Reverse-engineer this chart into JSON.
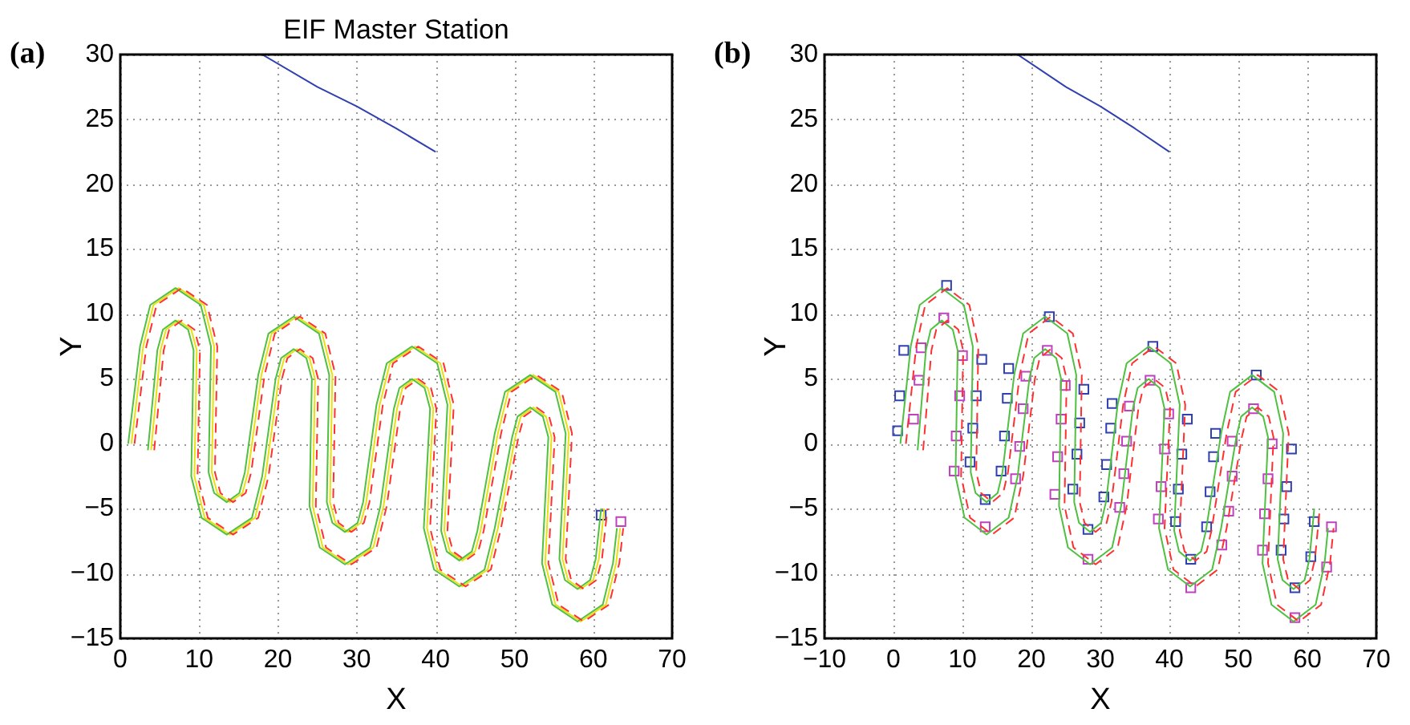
{
  "chart_data": [
    {
      "type": "line",
      "title": "EIF Master Station",
      "annotations": [
        "(a)"
      ],
      "xlabel": "X",
      "ylabel": "Y",
      "xlim": [
        0,
        70
      ],
      "xticks": [
        0,
        10,
        20,
        30,
        40,
        50,
        60,
        70
      ],
      "ylim": [
        -15,
        30
      ],
      "yticks": [
        -15,
        -10,
        -5,
        0,
        5,
        10,
        15,
        20,
        25,
        30
      ],
      "grid": true,
      "series": [
        {
          "type": "line",
          "color": "#3040b0",
          "x": [
            18,
            25,
            30,
            35,
            40
          ],
          "values": [
            30,
            27.5,
            26,
            24.3,
            22.5
          ]
        },
        {
          "type": "line",
          "color": "#ff3030",
          "line_style": "dashed",
          "x": [
            1.8,
            3.3,
            4.6,
            7.8,
            11,
            12.3,
            12,
            12.7,
            14.3,
            15.9,
            16.6,
            18.3,
            19.6,
            22.8,
            26,
            27.3,
            27,
            27.7,
            29.3,
            30.9,
            31.6,
            33.3,
            34.6,
            37.8,
            41,
            42.3,
            41.5,
            42.2,
            43.8,
            45.4,
            46.1,
            48.3,
            49.6,
            52.8,
            56,
            57.3,
            56.5,
            57.2,
            58.8,
            60.4,
            61.1,
            61.8
          ],
          "values": [
            0,
            7.5,
            10.7,
            12,
            10.7,
            7.5,
            -2.2,
            -3.8,
            -4.5,
            -3.8,
            -2.2,
            5.3,
            8.5,
            9.8,
            8.5,
            5.3,
            -4.5,
            -6.1,
            -6.8,
            -6.1,
            -4.5,
            3,
            6.2,
            7.5,
            6.2,
            3,
            -6.7,
            -8.3,
            -9,
            -8.3,
            -6.7,
            0.8,
            4,
            5.3,
            4,
            0.8,
            -8.9,
            -10.5,
            -11.2,
            -10.5,
            -8.9,
            -5
          ]
        },
        {
          "type": "line",
          "color": "#ff3030",
          "line_style": "dashed",
          "x": [
            4.3,
            5.5,
            6.2,
            7.8,
            9.4,
            10.1,
            9.8,
            11.1,
            14.3,
            17.5,
            18.8,
            20.5,
            21.2,
            22.8,
            24.4,
            25.1,
            24.8,
            26.1,
            29.3,
            32.5,
            33.8,
            35.5,
            36.2,
            37.8,
            39.4,
            40.1,
            39.3,
            40.6,
            43.8,
            47,
            48.3,
            50.5,
            51.2,
            52.8,
            54.4,
            55.1,
            54.3,
            55.6,
            58.8,
            62,
            63.3,
            63.8
          ],
          "values": [
            -0.5,
            7.2,
            8.8,
            9.5,
            8.8,
            7.2,
            -2.5,
            -5.7,
            -7,
            -5.7,
            -2.5,
            5,
            6.6,
            7.3,
            6.6,
            5,
            -4.8,
            -8,
            -9.3,
            -8,
            -4.8,
            2.7,
            4.3,
            5,
            4.3,
            2.7,
            -6.5,
            -9.7,
            -11,
            -9.7,
            -6.5,
            0.5,
            2.1,
            2.8,
            2.1,
            0.5,
            -9.2,
            -12.4,
            -13.7,
            -12.4,
            -9.2,
            -6.5
          ]
        },
        {
          "type": "line",
          "color": "#50c040",
          "x": [
            1,
            2.5,
            3.8,
            7,
            10.2,
            11.5,
            11.2,
            11.9,
            13.5,
            15.1,
            15.8,
            17.5,
            18.8,
            22,
            25.2,
            26.5,
            26.2,
            26.9,
            28.5,
            30.1,
            30.8,
            32.5,
            33.8,
            37,
            40.2,
            41.5,
            40.7,
            41.4,
            43,
            44.6,
            45.3,
            47.5,
            48.8,
            52,
            55.2,
            56.5,
            55.7,
            56.4,
            58,
            59.6,
            60.3,
            61
          ],
          "values": [
            0,
            7.5,
            10.7,
            12,
            10.7,
            7.5,
            -2.2,
            -3.8,
            -4.5,
            -3.8,
            -2.2,
            5.3,
            8.5,
            9.8,
            8.5,
            5.3,
            -4.5,
            -6.1,
            -6.8,
            -6.1,
            -4.5,
            3,
            6.2,
            7.5,
            6.2,
            3,
            -6.7,
            -8.3,
            -9,
            -8.3,
            -6.7,
            0.8,
            4,
            5.3,
            4,
            0.8,
            -8.9,
            -10.5,
            -11.2,
            -10.5,
            -8.9,
            -5
          ]
        },
        {
          "type": "line",
          "color": "#50c040",
          "x": [
            3.5,
            4.7,
            5.4,
            7,
            8.6,
            9.3,
            9,
            10.3,
            13.5,
            16.7,
            18,
            19.7,
            20.4,
            22,
            23.6,
            24.3,
            24,
            25.3,
            28.5,
            31.7,
            33,
            34.7,
            35.4,
            37,
            38.6,
            39.3,
            38.5,
            39.8,
            43,
            46.2,
            47.5,
            49.7,
            50.4,
            52,
            53.6,
            54.3,
            53.5,
            54.8,
            58,
            61.2,
            62.5,
            63
          ],
          "values": [
            -0.5,
            7.2,
            8.8,
            9.5,
            8.8,
            7.2,
            -2.5,
            -5.7,
            -7,
            -5.7,
            -2.5,
            5,
            6.6,
            7.3,
            6.6,
            5,
            -4.8,
            -8,
            -9.3,
            -8,
            -4.8,
            2.7,
            4.3,
            5,
            4.3,
            2.7,
            -6.5,
            -9.7,
            -11,
            -9.7,
            -6.5,
            0.5,
            2.1,
            2.8,
            2.1,
            0.5,
            -9.2,
            -12.4,
            -13.7,
            -12.4,
            -9.2,
            -6.5
          ]
        },
        {
          "type": "line",
          "color": "#e8e010",
          "x": [
            1.4,
            2.9,
            4.2,
            7.4,
            10.6,
            11.9,
            11.6,
            12.3,
            13.9,
            15.5,
            16.2,
            17.9,
            19.2,
            22.4,
            25.6,
            26.9,
            26.6,
            27.3,
            28.9,
            30.5,
            31.2,
            32.9,
            34.2,
            37.4,
            40.6,
            41.9,
            41.1,
            41.8,
            43.4,
            45,
            45.7,
            47.9,
            49.2,
            52.4,
            55.6,
            56.9,
            56.1,
            56.8,
            58.4,
            60,
            60.7,
            61.4
          ],
          "values": [
            0,
            7.5,
            10.7,
            12,
            10.7,
            7.5,
            -2.2,
            -3.8,
            -4.5,
            -3.8,
            -2.2,
            5.3,
            8.5,
            9.8,
            8.5,
            5.3,
            -4.5,
            -6.1,
            -6.8,
            -6.1,
            -4.5,
            3,
            6.2,
            7.5,
            6.2,
            3,
            -6.7,
            -8.3,
            -9,
            -8.3,
            -6.7,
            0.8,
            4,
            5.3,
            4,
            0.8,
            -8.9,
            -10.5,
            -11.2,
            -10.5,
            -8.9,
            -5
          ]
        },
        {
          "type": "line",
          "color": "#e8e010",
          "x": [
            3.9,
            5.1,
            5.8,
            7.4,
            9,
            9.7,
            9.4,
            10.7,
            13.9,
            17.1,
            18.4,
            20.1,
            20.8,
            22.4,
            24,
            24.7,
            24.4,
            25.7,
            28.9,
            32.1,
            33.4,
            35.1,
            35.8,
            37.4,
            39,
            39.7,
            38.9,
            40.2,
            43.4,
            46.6,
            47.9,
            50.1,
            50.8,
            52.4,
            54,
            54.7,
            53.9,
            55.2,
            58.4,
            61.6,
            62.9,
            63.4
          ],
          "values": [
            -0.5,
            7.2,
            8.8,
            9.5,
            8.8,
            7.2,
            -2.5,
            -5.7,
            -7,
            -5.7,
            -2.5,
            5,
            6.6,
            7.3,
            6.6,
            5,
            -4.8,
            -8,
            -9.3,
            -8,
            -4.8,
            2.7,
            4.3,
            5,
            4.3,
            2.7,
            -6.5,
            -9.7,
            -11,
            -9.7,
            -6.5,
            0.5,
            2.1,
            2.8,
            2.1,
            0.5,
            -9.2,
            -12.4,
            -13.7,
            -12.4,
            -9.2,
            -6.5
          ]
        },
        {
          "type": "scatter",
          "color": "#3040b0",
          "marker": "square",
          "x": [
            61
          ],
          "values": [
            -5.5
          ]
        },
        {
          "type": "scatter",
          "color": "#c040c0",
          "marker": "square",
          "x": [
            63.5
          ],
          "values": [
            -6
          ]
        }
      ]
    },
    {
      "type": "line",
      "annotations": [
        "(b)"
      ],
      "xlabel": "X",
      "ylabel": "Y",
      "xlim": [
        -10,
        70
      ],
      "xticks": [
        -10,
        0,
        10,
        20,
        30,
        40,
        50,
        60,
        70
      ],
      "ylim": [
        -15,
        30
      ],
      "yticks": [
        -15,
        -10,
        -5,
        0,
        5,
        10,
        15,
        20,
        25,
        30
      ],
      "grid": true,
      "series": [
        {
          "type": "line",
          "color": "#3040b0",
          "x": [
            18,
            25,
            30,
            35,
            40
          ],
          "values": [
            30,
            27.5,
            26,
            24.3,
            22.5
          ]
        },
        {
          "type": "line",
          "color": "#ff3030",
          "line_style": "dashed",
          "x": [
            1.8,
            3.3,
            4.6,
            7.8,
            11,
            12.3,
            12,
            12.7,
            14.3,
            15.9,
            16.6,
            18.3,
            19.6,
            22.8,
            26,
            27.3,
            27,
            27.7,
            29.3,
            30.9,
            31.6,
            33.3,
            34.6,
            37.8,
            41,
            42.3,
            41.5,
            42.2,
            43.8,
            45.4,
            46.1,
            48.3,
            49.6,
            52.8,
            56,
            57.3,
            56.5,
            57.2,
            58.8,
            60.4,
            61.1,
            61.8
          ],
          "values": [
            0,
            7.5,
            10.7,
            12,
            10.7,
            7.5,
            -2.2,
            -3.8,
            -4.5,
            -3.8,
            -2.2,
            5.3,
            8.5,
            9.8,
            8.5,
            5.3,
            -4.5,
            -6.1,
            -6.8,
            -6.1,
            -4.5,
            3,
            6.2,
            7.5,
            6.2,
            3,
            -6.7,
            -8.3,
            -9,
            -8.3,
            -6.7,
            0.8,
            4,
            5.3,
            4,
            0.8,
            -8.9,
            -10.5,
            -11.2,
            -10.5,
            -8.9,
            -5
          ]
        },
        {
          "type": "line",
          "color": "#ff3030",
          "line_style": "dashed",
          "x": [
            4.3,
            5.5,
            6.2,
            7.8,
            9.4,
            10.1,
            9.8,
            11.1,
            14.3,
            17.5,
            18.8,
            20.5,
            21.2,
            22.8,
            24.4,
            25.1,
            24.8,
            26.1,
            29.3,
            32.5,
            33.8,
            35.5,
            36.2,
            37.8,
            39.4,
            40.1,
            39.3,
            40.6,
            43.8,
            47,
            48.3,
            50.5,
            51.2,
            52.8,
            54.4,
            55.1,
            54.3,
            55.6,
            58.8,
            62,
            63.3,
            63.8
          ],
          "values": [
            -0.5,
            7.2,
            8.8,
            9.5,
            8.8,
            7.2,
            -2.5,
            -5.7,
            -7,
            -5.7,
            -2.5,
            5,
            6.6,
            7.3,
            6.6,
            5,
            -4.8,
            -8,
            -9.3,
            -8,
            -4.8,
            2.7,
            4.3,
            5,
            4.3,
            2.7,
            -6.5,
            -9.7,
            -11,
            -9.7,
            -6.5,
            0.5,
            2.1,
            2.8,
            2.1,
            0.5,
            -9.2,
            -12.4,
            -13.7,
            -12.4,
            -9.2,
            -6.5
          ]
        },
        {
          "type": "line",
          "color": "#50c040",
          "x": [
            1,
            2.5,
            3.8,
            7,
            10.2,
            11.5,
            11.2,
            11.9,
            13.5,
            15.1,
            15.8,
            17.5,
            18.8,
            22,
            25.2,
            26.5,
            26.2,
            26.9,
            28.5,
            30.1,
            30.8,
            32.5,
            33.8,
            37,
            40.2,
            41.5,
            40.7,
            41.4,
            43,
            44.6,
            45.3,
            47.5,
            48.8,
            52,
            55.2,
            56.5,
            55.7,
            56.4,
            58,
            59.6,
            60.3,
            61
          ],
          "values": [
            0,
            7.5,
            10.7,
            12,
            10.7,
            7.5,
            -2.2,
            -3.8,
            -4.5,
            -3.8,
            -2.2,
            5.3,
            8.5,
            9.8,
            8.5,
            5.3,
            -4.5,
            -6.1,
            -6.8,
            -6.1,
            -4.5,
            3,
            6.2,
            7.5,
            6.2,
            3,
            -6.7,
            -8.3,
            -9,
            -8.3,
            -6.7,
            0.8,
            4,
            5.3,
            4,
            0.8,
            -8.9,
            -10.5,
            -11.2,
            -10.5,
            -8.9,
            -5
          ]
        },
        {
          "type": "line",
          "color": "#50c040",
          "x": [
            3.5,
            4.7,
            5.4,
            7,
            8.6,
            9.3,
            9,
            10.3,
            13.5,
            16.7,
            18,
            19.7,
            20.4,
            22,
            23.6,
            24.3,
            24,
            25.3,
            28.5,
            31.7,
            33,
            34.7,
            35.4,
            37,
            38.6,
            39.3,
            38.5,
            39.8,
            43,
            46.2,
            47.5,
            49.7,
            50.4,
            52,
            53.6,
            54.3,
            53.5,
            54.8,
            58,
            61.2,
            62.5,
            63
          ],
          "values": [
            -0.5,
            7.2,
            8.8,
            9.5,
            8.8,
            7.2,
            -2.5,
            -5.7,
            -7,
            -5.7,
            -2.5,
            5,
            6.6,
            7.3,
            6.6,
            5,
            -4.8,
            -8,
            -9.3,
            -8,
            -4.8,
            2.7,
            4.3,
            5,
            4.3,
            2.7,
            -6.5,
            -9.7,
            -11,
            -9.7,
            -6.5,
            0.5,
            2.1,
            2.8,
            2.1,
            0.5,
            -9.2,
            -12.4,
            -13.7,
            -12.4,
            -9.2,
            -6.5
          ]
        },
        {
          "type": "scatter",
          "color": "#3040b0",
          "marker": "square",
          "x": [
            0.6,
            0.9,
            1.5,
            7.7,
            12.8,
            12,
            11.5,
            11.1,
            13.3,
            15.6,
            16.1,
            16.5,
            16.7,
            22.6,
            27.6,
            27,
            26.6,
            26,
            28.2,
            30.5,
            30.9,
            31.5,
            31.7,
            37.6,
            42.6,
            41.8,
            41.3,
            40.9,
            43.1,
            45.4,
            45.9,
            46.4,
            46.7,
            52.6,
            57.7,
            57,
            56.6,
            56.2,
            58.2,
            60.5,
            61
          ],
          "values": [
            1,
            3.7,
            7.2,
            12.2,
            6.5,
            3.7,
            1.2,
            -1.4,
            -4.3,
            -2.1,
            0.6,
            3.5,
            5.8,
            9.8,
            4.2,
            1.6,
            -0.8,
            -3.5,
            -6.6,
            -4.1,
            -1.6,
            1.2,
            3.1,
            7.5,
            1.9,
            -0.8,
            -3.5,
            -6,
            -8.9,
            -6.4,
            -3.7,
            -1,
            0.8,
            5.3,
            -0.4,
            -3.3,
            -5.8,
            -8.2,
            -11.1,
            -8.7,
            -6
          ]
        },
        {
          "type": "scatter",
          "color": "#c040c0",
          "marker": "square",
          "x": [
            2.9,
            3.7,
            4,
            7.3,
            10,
            9.6,
            9.1,
            8.8,
            13.3,
            17.7,
            18.3,
            18.8,
            19.2,
            22.3,
            24.9,
            24.3,
            23.8,
            23.4,
            28.2,
            32.8,
            33.4,
            33.8,
            34.2,
            37.2,
            39.9,
            39.3,
            38.8,
            38.4,
            43.1,
            47.6,
            48.6,
            49.1,
            49.1,
            52.2,
            54.9,
            54.3,
            53.8,
            53.5,
            58.2,
            62.8,
            63.5
          ],
          "values": [
            1.9,
            4.9,
            7.4,
            9.7,
            6.8,
            3.7,
            0.6,
            -2.1,
            -6.4,
            -2.7,
            -0.2,
            2.7,
            5.2,
            7.2,
            4.5,
            1.9,
            -1,
            -3.9,
            -8.9,
            -4.9,
            -2.3,
            0.2,
            2.9,
            4.9,
            2.3,
            -0.4,
            -3.3,
            -5.8,
            -11.1,
            -7.8,
            -5.2,
            -2.5,
            0.2,
            2.7,
            0,
            -2.7,
            -5.4,
            -8.2,
            -13.4,
            -9.5,
            -6.4
          ]
        }
      ]
    }
  ]
}
